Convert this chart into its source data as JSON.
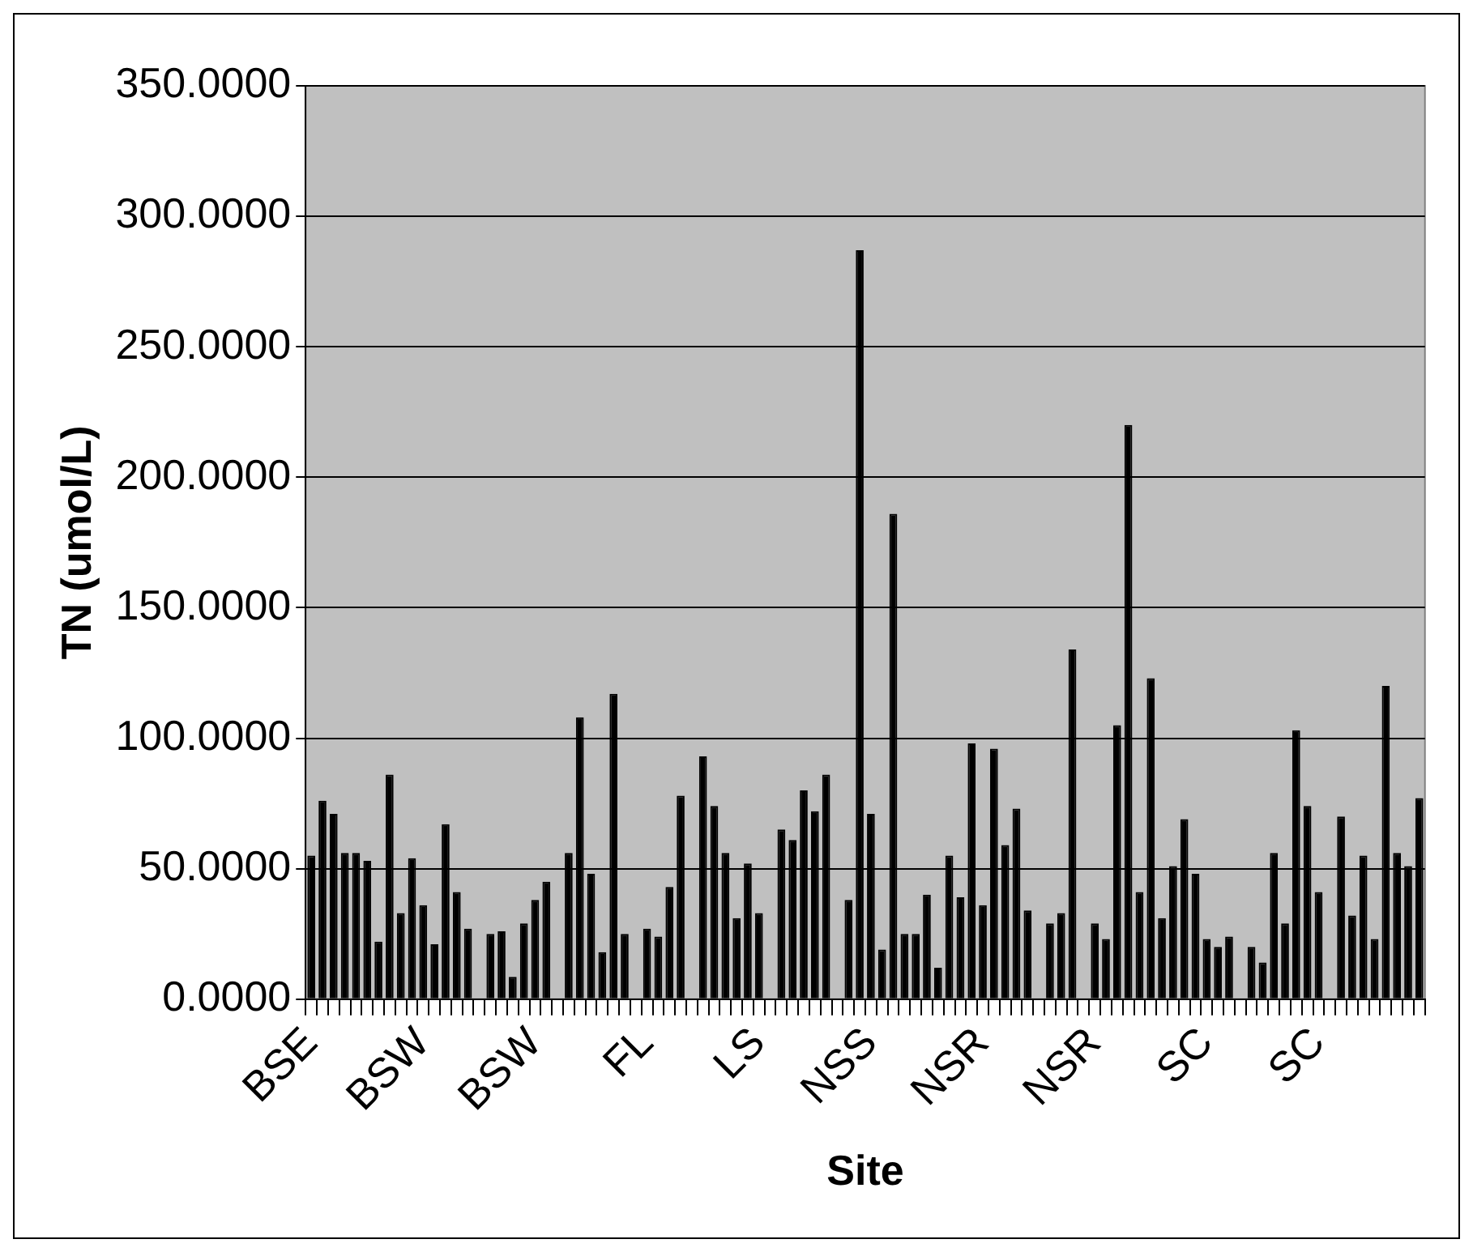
{
  "chart_data": {
    "type": "bar",
    "xlabel": "Site",
    "ylabel": "TN (umol/L)",
    "categories": [
      "BSE",
      null,
      null,
      null,
      null,
      null,
      null,
      null,
      null,
      null,
      "BSW",
      null,
      null,
      null,
      null,
      null,
      null,
      null,
      null,
      null,
      "BSW",
      null,
      null,
      null,
      null,
      null,
      null,
      null,
      null,
      null,
      "FL",
      null,
      null,
      null,
      null,
      null,
      null,
      null,
      null,
      null,
      "LS",
      null,
      null,
      null,
      null,
      null,
      null,
      null,
      null,
      null,
      "NSS",
      null,
      null,
      null,
      null,
      null,
      null,
      null,
      null,
      null,
      "NSR",
      null,
      null,
      null,
      null,
      null,
      null,
      null,
      null,
      null,
      "NSR",
      null,
      null,
      null,
      null,
      null,
      null,
      null,
      null,
      null,
      "SC",
      null,
      null,
      null,
      null,
      null,
      null,
      null,
      null,
      null,
      "SC",
      null,
      null,
      null,
      null,
      null,
      null,
      null,
      null,
      null
    ],
    "values": [
      55,
      76,
      71,
      56,
      56,
      53,
      22,
      86,
      33,
      54,
      36,
      21,
      67,
      41,
      27,
      null,
      25,
      26,
      8.5,
      29,
      38,
      45,
      null,
      56,
      108,
      48,
      18,
      117,
      25,
      null,
      27,
      24,
      43,
      78,
      null,
      93,
      74,
      56,
      31,
      52,
      33,
      null,
      65,
      61,
      80,
      72,
      86,
      null,
      38,
      287,
      71,
      19,
      186,
      25,
      25,
      40,
      12,
      55,
      39,
      98,
      36,
      96,
      59,
      73,
      34,
      null,
      29,
      33,
      134,
      null,
      29,
      23,
      105,
      220,
      41,
      123,
      31,
      51,
      69,
      48,
      23,
      20,
      24,
      null,
      20,
      14,
      56,
      29,
      103,
      74,
      41,
      null,
      70,
      32,
      55,
      23,
      120,
      56,
      51,
      77
    ],
    "color": "#000000",
    "ylim": [
      0,
      350
    ],
    "yticks": [
      {
        "value": 0,
        "label": "0.0000"
      },
      {
        "value": 50,
        "label": "50.0000"
      },
      {
        "value": 100,
        "label": "100.0000"
      },
      {
        "value": 150,
        "label": "150.0000"
      },
      {
        "value": 200,
        "label": "200.0000"
      },
      {
        "value": 250,
        "label": "250.0000"
      },
      {
        "value": 300,
        "label": "300.0000"
      },
      {
        "value": 350,
        "label": "350.0000"
      }
    ],
    "grid": "y",
    "legend": false
  }
}
